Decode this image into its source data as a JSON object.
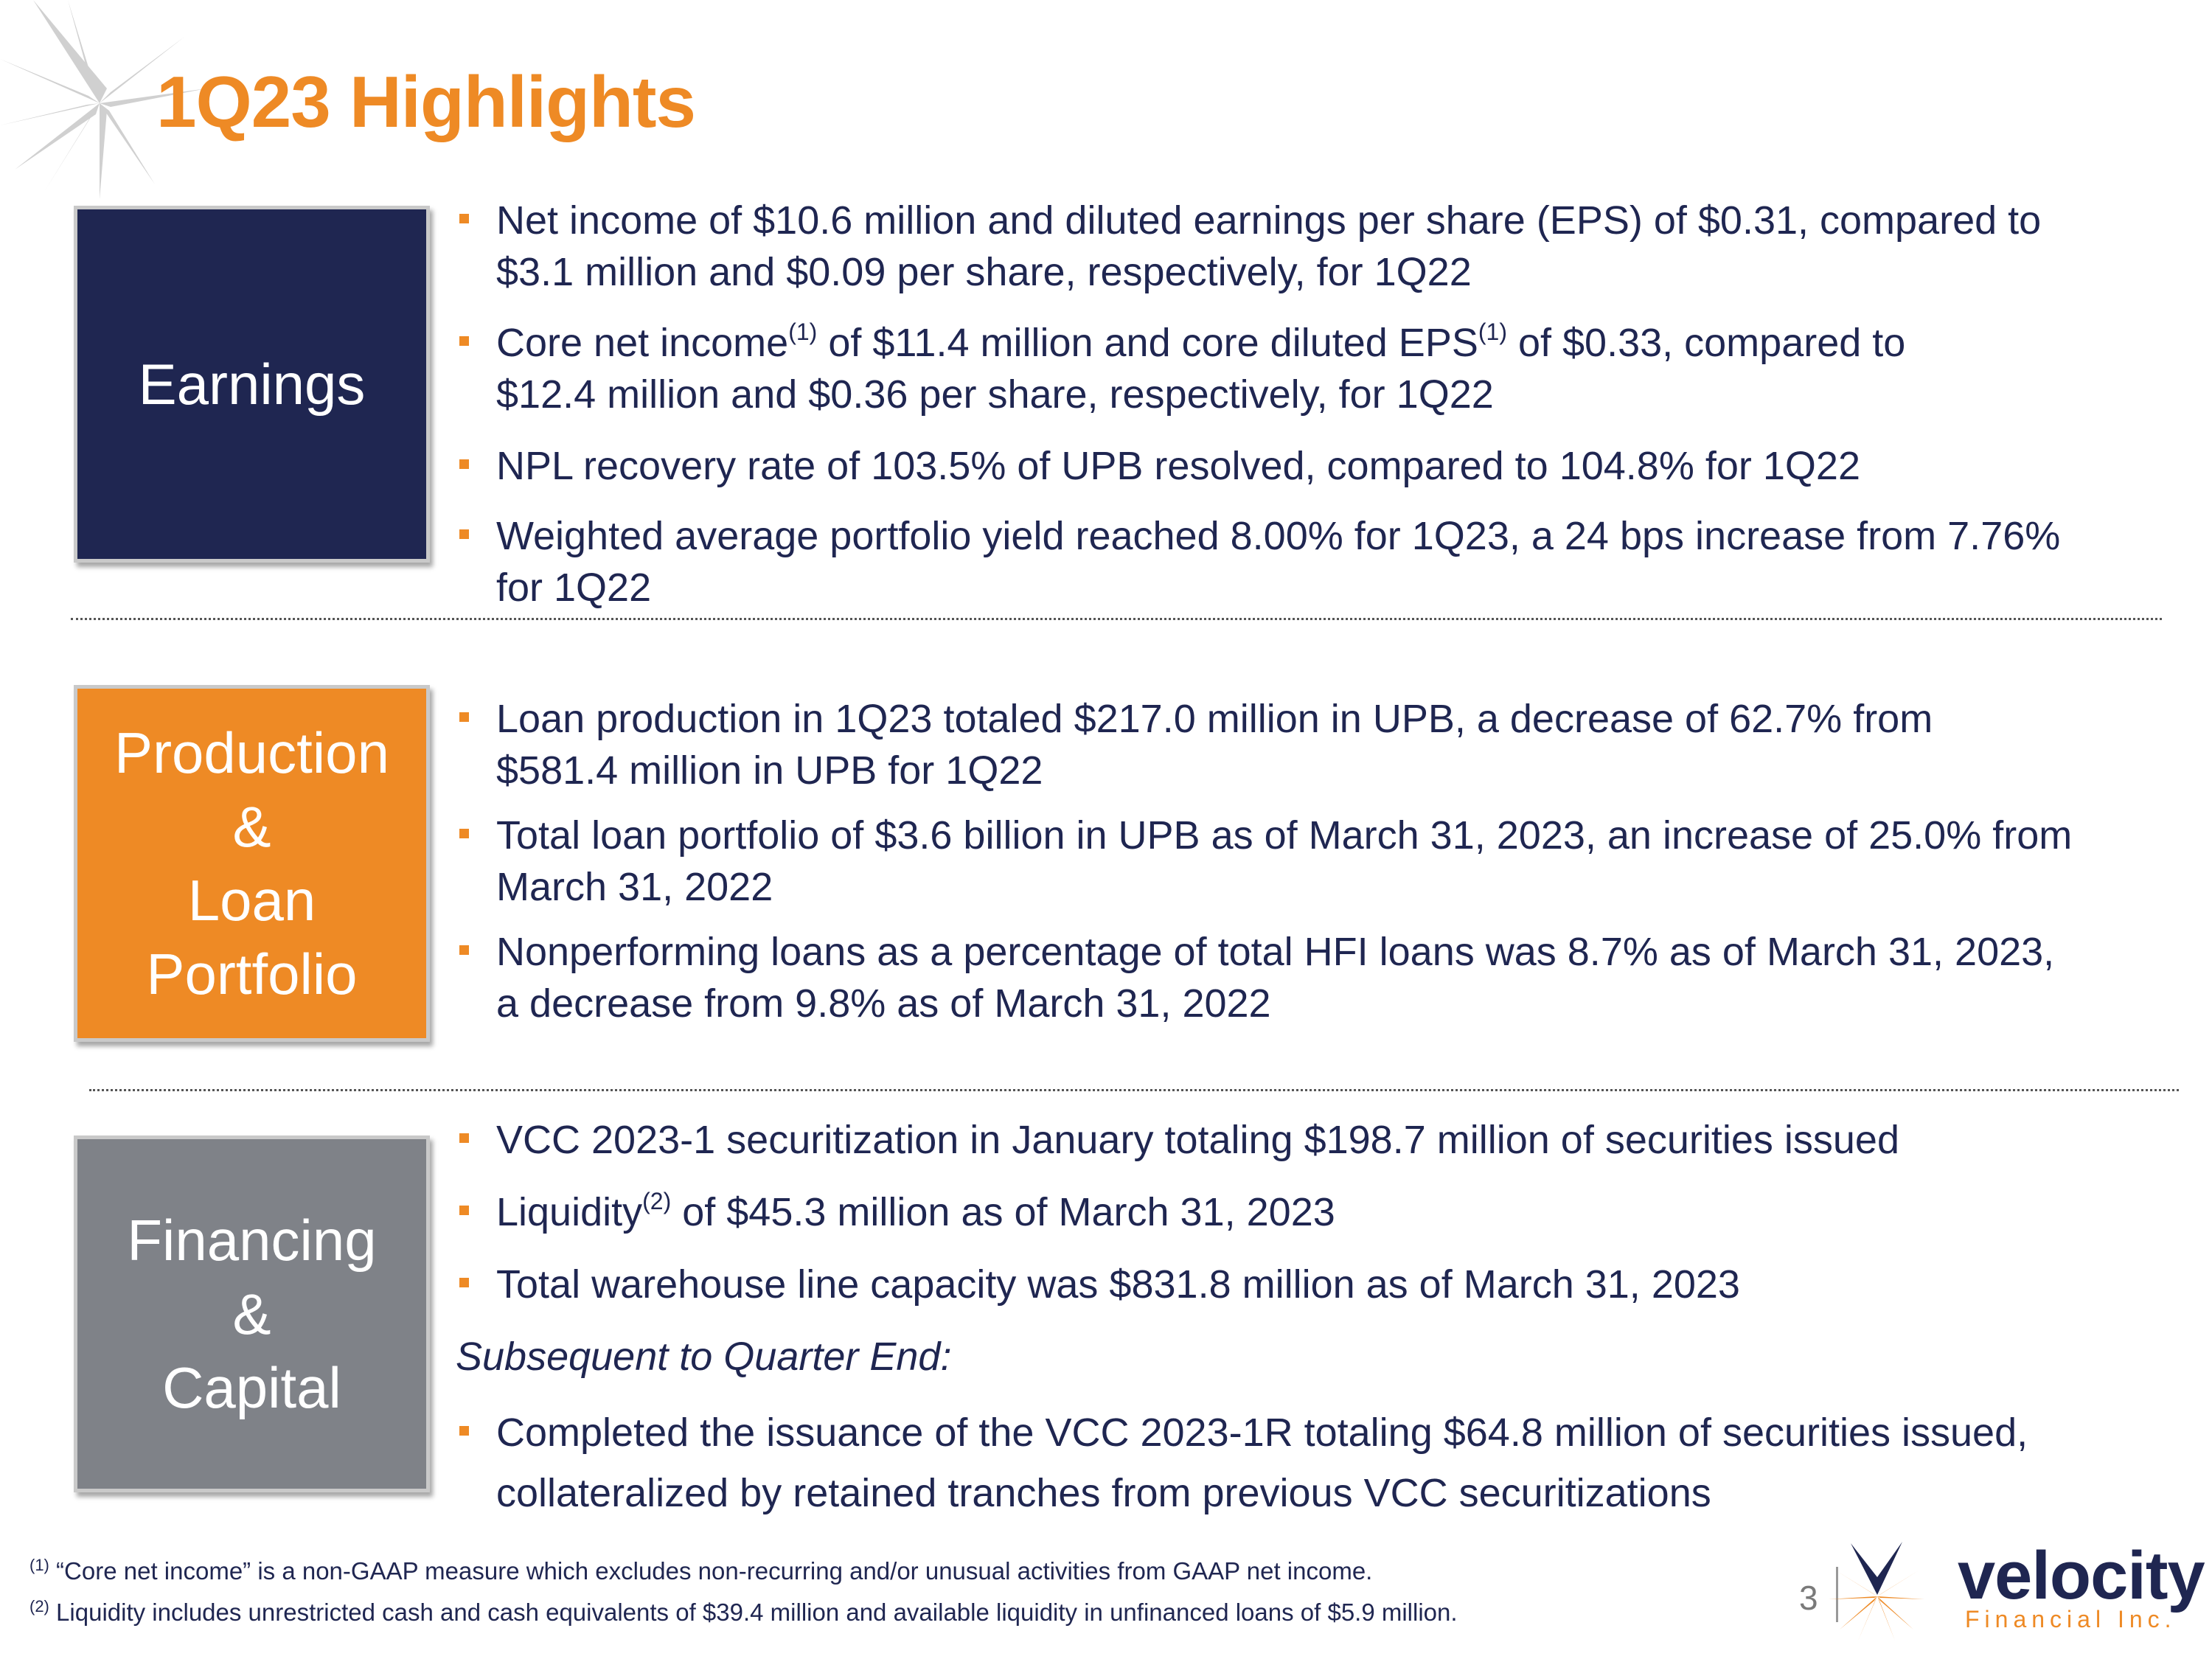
{
  "title": "1Q23 Highlights",
  "sections": {
    "earnings": {
      "label": "Earnings",
      "color": "#1f2651",
      "bullets": [
        {
          "a": "Net income of $10.6 million and diluted earnings per share (EPS) of $0.31, compared to",
          "b": "$3.1 million and $0.09 per share, respectively, for 1Q22"
        },
        {
          "a1": "Core net income",
          "s1": "(1)",
          "a2": " of $11.4 million and core diluted EPS",
          "s2": "(1)",
          "a3": " of $0.33, compared to",
          "b": "$12.4 million and $0.36 per share, respectively, for 1Q22"
        },
        {
          "a": "NPL recovery rate of 103.5% of UPB resolved, compared to 104.8% for 1Q22"
        },
        {
          "a": "Weighted average portfolio yield reached 8.00% for 1Q23, a 24 bps increase from 7.76%",
          "b": "for 1Q22"
        }
      ]
    },
    "production": {
      "label_lines": [
        "Production",
        "&",
        "Loan",
        "Portfolio"
      ],
      "color": "#ee8a25",
      "bullets": [
        {
          "a": "Loan production in 1Q23 totaled $217.0 million in UPB, a decrease of 62.7% from",
          "b": "$581.4 million in UPB for 1Q22"
        },
        {
          "a": "Total loan portfolio of $3.6 billion in UPB as of March 31, 2023, an increase of 25.0% from",
          "b": "March 31, 2022"
        },
        {
          "a": "Nonperforming loans as a percentage of total HFI loans was 8.7% as of March 31, 2023,",
          "b": "a decrease from 9.8% as of March 31, 2022"
        }
      ]
    },
    "financing": {
      "label_lines": [
        "Financing",
        "&",
        "Capital"
      ],
      "color": "#7f8288",
      "bullets": [
        {
          "a": "VCC 2023-1 securitization in January totaling $198.7 million of securities issued"
        },
        {
          "a1": "Liquidity",
          "s1": "(2)",
          "a2": " of $45.3 million as of March 31, 2023"
        },
        {
          "a": "Total warehouse line capacity was $831.8 million as of March 31, 2023"
        }
      ],
      "subsequent_heading": "Subsequent to Quarter End:",
      "subsequent_bullet": {
        "a": "Completed the issuance of the VCC 2023-1R totaling $64.8 million of securities issued,",
        "b": "collateralized by retained tranches from previous VCC securitizations"
      }
    }
  },
  "footnotes": [
    {
      "mark": "(1)",
      "text": " “Core net income” is a non-GAAP measure which excludes non-recurring and/or unusual activities from GAAP net income."
    },
    {
      "mark": "(2)",
      "text": " Liquidity includes unrestricted cash and cash equivalents of $39.4 million and available liquidity in unfinanced loans of $5.9 million."
    }
  ],
  "page_number": "3",
  "logo": {
    "word": "velocity",
    "sub": "Financial Inc."
  },
  "colors": {
    "accent": "#ee8a25",
    "navy": "#1f2651",
    "grey": "#7f8288"
  }
}
